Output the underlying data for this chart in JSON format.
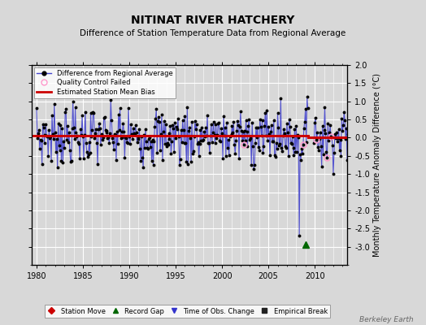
{
  "title": "NITINAT RIVER HATCHERY",
  "subtitle": "Difference of Station Temperature Data from Regional Average",
  "ylabel": "Monthly Temperature Anomaly Difference (°C)",
  "xlim": [
    1979.5,
    2013.5
  ],
  "ylim": [
    -3.5,
    2.0
  ],
  "yticks": [
    -3.0,
    -2.5,
    -2.0,
    -1.5,
    -1.0,
    -0.5,
    0.0,
    0.5,
    1.0,
    1.5,
    2.0
  ],
  "xticks": [
    1980,
    1985,
    1990,
    1995,
    2000,
    2005,
    2010
  ],
  "mean_bias": 0.05,
  "record_gap_x": 2009.0,
  "record_gap_y": -2.95,
  "bg_color": "#d8d8d8",
  "plot_bg_color": "#d8d8d8",
  "line_color": "#4444cc",
  "dot_color": "#000000",
  "bias_color": "#cc0000",
  "qc_color": "#ff99cc",
  "station_move_color": "#cc0000",
  "record_gap_color": "#006600",
  "obs_change_color": "#3333cc",
  "empirical_break_color": "#222222",
  "berkeley_earth_text": "Berkeley Earth",
  "watermark_color": "#666666",
  "title_fontsize": 10,
  "subtitle_fontsize": 7.5,
  "tick_labelsize": 7,
  "legend_fontsize": 6,
  "ylabel_fontsize": 7
}
